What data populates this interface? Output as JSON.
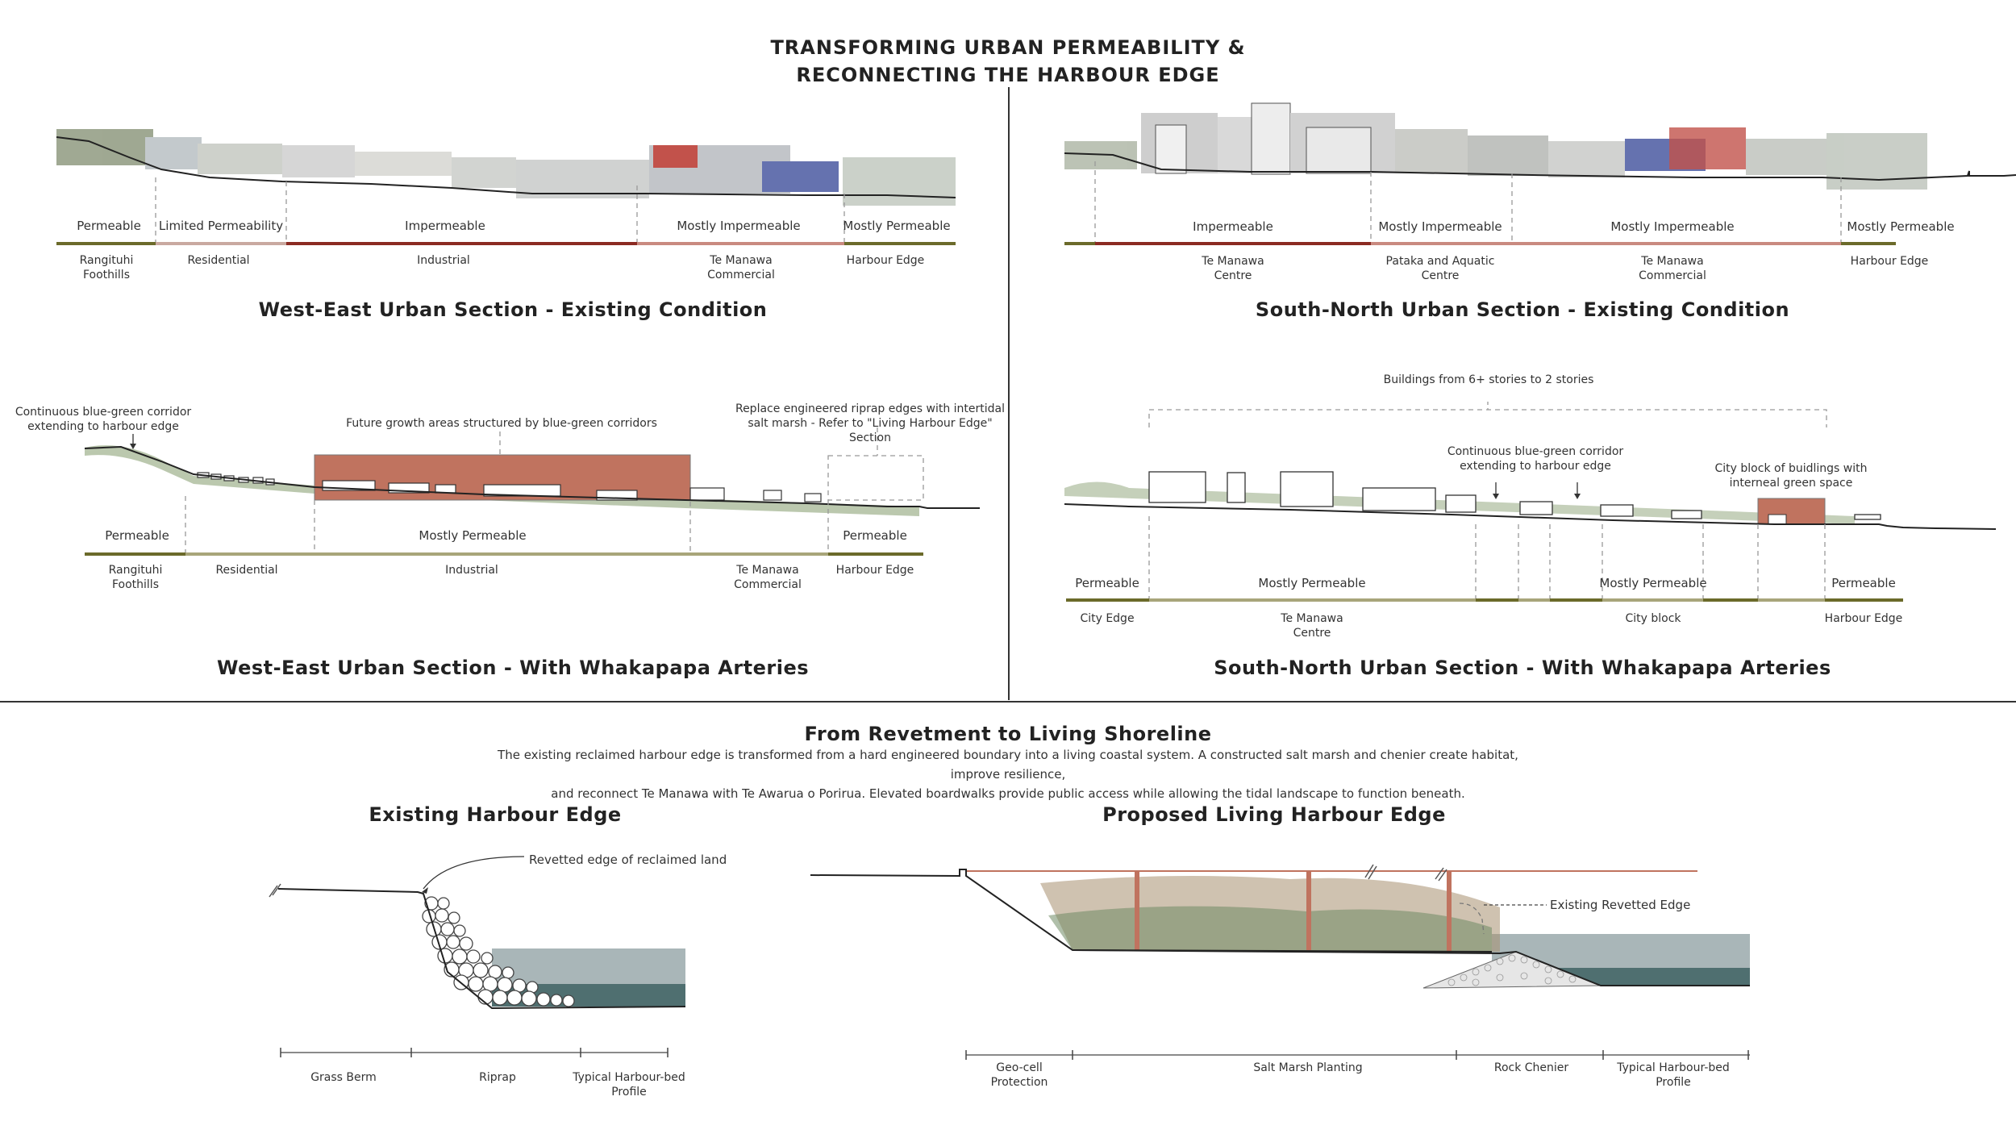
{
  "title": {
    "line1": "TRANSFORMING URBAN PERMEABILITY &",
    "line2": "RECONNECTING THE HARBOUR EDGE"
  },
  "colors": {
    "permeable": "#6b6a2a",
    "limited": "#c9a9a0",
    "impermeable": "#8b2a22",
    "mostly_impermeable": "#c98a80",
    "mostly_permeable": "#a8a57a",
    "brick": "#c0735f",
    "water_light": "#a9b6b8",
    "water_dark": "#4f6f70"
  },
  "we_existing": {
    "title": "West-East Urban Section - Existing Condition",
    "permeability": [
      "Permeable",
      "Limited Permeability",
      "Impermeable",
      "Mostly Impermeable",
      "Mostly Permeable"
    ],
    "zones": [
      "Rangituhi Foothills",
      "Residential",
      "Industrial",
      "Te Manawa Commercial",
      "Harbour Edge"
    ]
  },
  "sn_existing": {
    "title": "South-North Urban Section - Existing Condition",
    "permeability": [
      "Impermeable",
      "Mostly Impermeable",
      "Mostly Impermeable",
      "Mostly Permeable"
    ],
    "zones": [
      "Te Manawa Centre",
      "Pataka and Aquatic Centre",
      "Te Manawa Commercial",
      "Harbour Edge"
    ]
  },
  "we_proposed": {
    "title": "West-East Urban Section - With Whakapapa Arteries",
    "note_corridor": "Continuous blue-green corridor extending to harbour edge",
    "note_growth": "Future growth areas structured by blue-green corridors",
    "note_riprap": "Replace engineered riprap edges with intertidal salt marsh - Refer to \"Living Harbour Edge\" Section",
    "permeability": [
      "Permeable",
      "Mostly Permeable",
      "Permeable"
    ],
    "zones": [
      "Rangituhi Foothills",
      "Residential",
      "Industrial",
      "Te Manawa Commercial",
      "Harbour Edge"
    ]
  },
  "sn_proposed": {
    "title": "South-North Urban Section - With Whakapapa Arteries",
    "note_buildings": "Buildings from 6+ stories to 2 stories",
    "note_corridor": "Continuous blue-green corridor extending to harbour edge",
    "note_block": "City block of buidlings with interneal green space",
    "permeability": [
      "Permeable",
      "Mostly Permeable",
      "Mostly Permeable",
      "Permeable"
    ],
    "zones": [
      "City Edge",
      "Te Manawa Centre",
      "City block",
      "Harbour Edge"
    ]
  },
  "shoreline": {
    "title": "From Revetment to Living Shoreline",
    "para1": "The existing reclaimed harbour edge is transformed from a hard engineered boundary into a living coastal system. A constructed salt marsh and chenier create habitat, improve resilience,",
    "para2": "and reconnect Te Manawa with Te Awarua o Porirua. Elevated boardwalks provide public access while allowing the tidal landscape to function beneath.",
    "existing_title": "Existing Harbour Edge",
    "existing_note": "Revetted edge of reclaimed land",
    "existing_dims": [
      "Grass Berm",
      "Riprap",
      "Typical Harbour-bed Profile"
    ],
    "proposed_title": "Proposed Living Harbour Edge",
    "proposed_note": "Existing Revetted Edge",
    "proposed_dims": [
      "Geo-cell Protection",
      "Salt Marsh Planting",
      "Rock Chenier",
      "Typical Harbour-bed Profile"
    ]
  }
}
